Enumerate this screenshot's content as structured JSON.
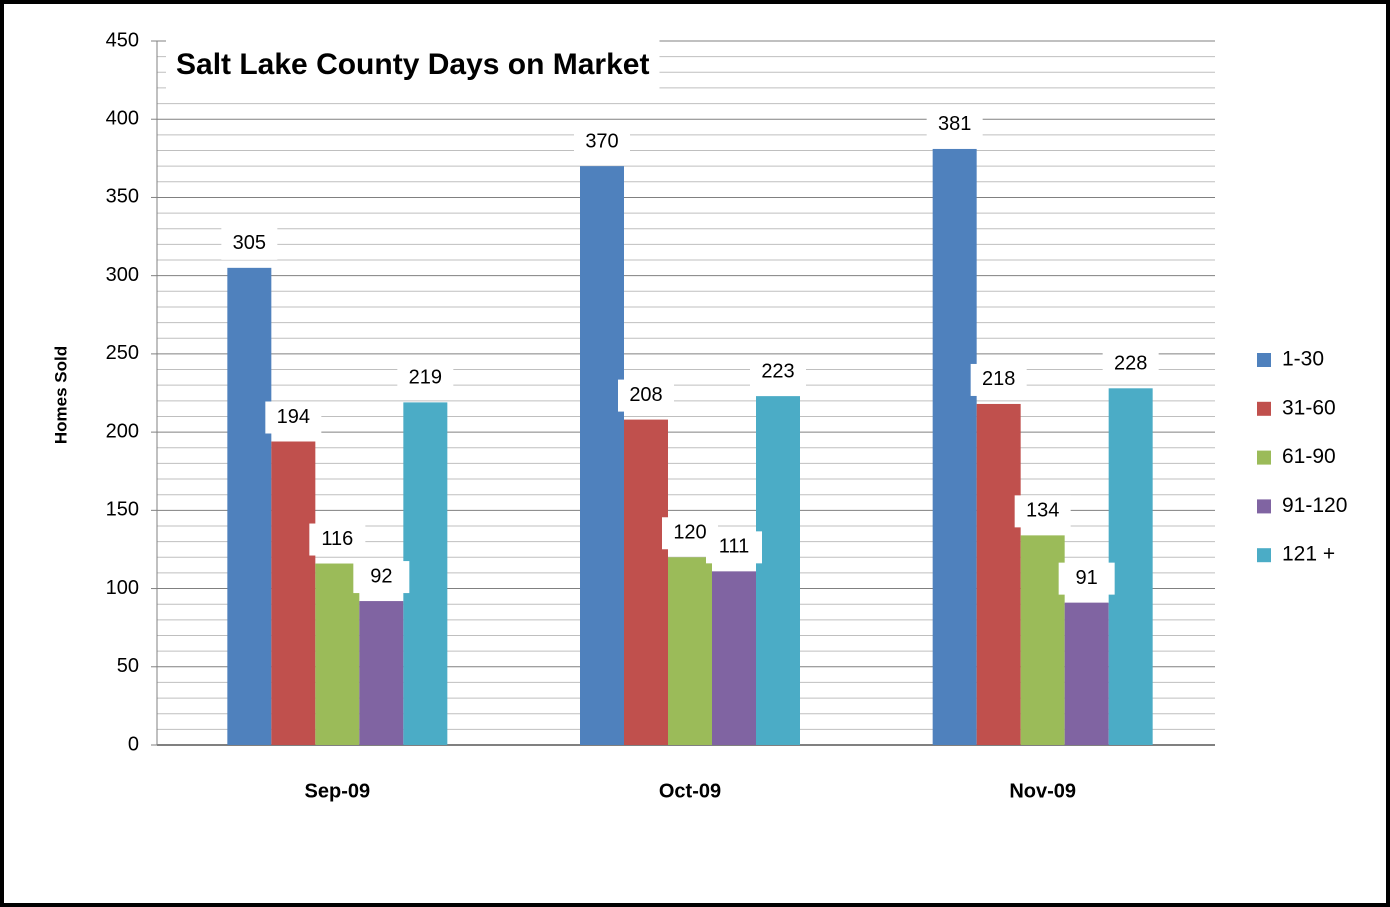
{
  "chart_data": {
    "type": "bar",
    "title": "Salt Lake County Days on Market",
    "y_label": "Homes Sold",
    "categories": [
      "Sep-09",
      "Oct-09",
      "Nov-09"
    ],
    "series": [
      {
        "name": "1-30",
        "color": "#4f81bd",
        "values": [
          305,
          370,
          381
        ]
      },
      {
        "name": "31-60",
        "color": "#c0504d",
        "values": [
          194,
          208,
          218
        ]
      },
      {
        "name": "61-90",
        "color": "#9bbb59",
        "values": [
          116,
          120,
          134
        ]
      },
      {
        "name": "91-120",
        "color": "#8064a2",
        "values": [
          92,
          111,
          91
        ]
      },
      {
        "name": "121 +",
        "color": "#4bacc6",
        "values": [
          219,
          223,
          228
        ]
      }
    ],
    "ylim": [
      0,
      450
    ],
    "yticks": [
      0,
      50,
      100,
      150,
      200,
      250,
      300,
      350,
      400,
      450
    ],
    "grid": true,
    "legend": "right"
  }
}
